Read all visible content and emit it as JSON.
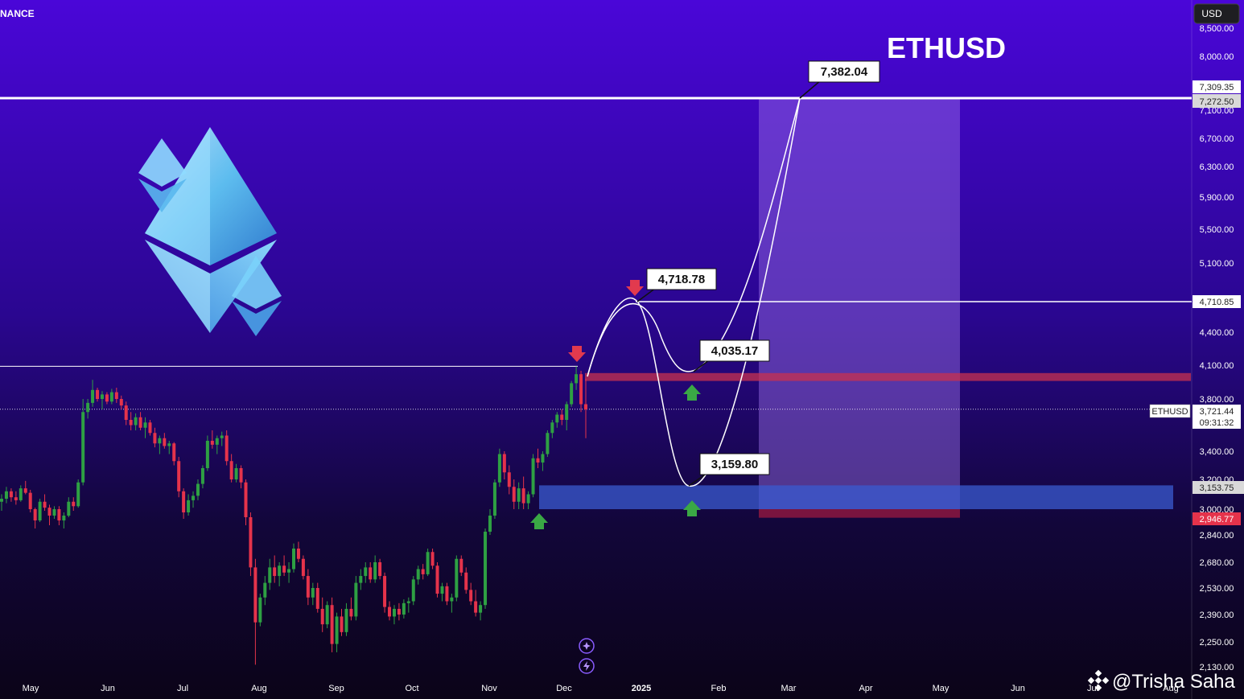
{
  "header": {
    "exchange_fragment": "NANCE",
    "currency_button": "USD",
    "title": "ETHUSD"
  },
  "watermark": "@Trisha Saha",
  "colors": {
    "bg_top": "#4a06d8",
    "bg_bottom": "#0b0418",
    "up_candle": "#2ea043",
    "down_candle": "#e5334b",
    "resistance_zone": "#c8324f",
    "support_zone": "#3a5bd0",
    "projection_box": "#9b72e6",
    "stop_zone": "#8c1740",
    "arrow_up": "#3aa845",
    "arrow_down": "#e23a4e"
  },
  "icons": [
    "compass-icon",
    "lightning-icon"
  ],
  "chart_data": {
    "type": "candlestick",
    "symbol": "ETHUSD",
    "y_ticks": [
      "8,500.00",
      "8,000.00",
      "7,100.00",
      "6,700.00",
      "6,300.00",
      "5,900.00",
      "5,500.00",
      "5,100.00",
      "4,400.00",
      "4,100.00",
      "3,800.00",
      "3,400.00",
      "3,200.00",
      "3,000.00",
      "2,840.00",
      "2,680.00",
      "2,530.00",
      "2,390.00",
      "2,250.00",
      "2,130.00"
    ],
    "x_ticks": [
      "May",
      "Jun",
      "Jul",
      "Aug",
      "Sep",
      "Oct",
      "Nov",
      "Dec",
      "2025",
      "Feb",
      "Mar",
      "Apr",
      "May",
      "Jun",
      "Jul",
      "Aug"
    ],
    "price_flags": {
      "p7309": "7,309.35",
      "p7272": "7,272.50",
      "p4710": "4,710.85",
      "symbol": "ETHUSD",
      "last_price": "3,721.44",
      "countdown": "09:31:32",
      "p3153": "3,153.75",
      "p2946": "2,946.77"
    },
    "callouts": {
      "target": "7,382.04",
      "high": "4,718.78",
      "retest": "4,035.17",
      "low": "3,159.80"
    },
    "levels": {
      "target_line": 7272.5,
      "resistance_line": 4710.85,
      "previous_high_line": 4090,
      "last_price": 3721.44,
      "resistance_zone": [
        3960,
        4030
      ],
      "support_zone": [
        3000,
        3160
      ],
      "stop_zone": [
        2946.77,
        3000
      ],
      "projection_box_top": 7272.5
    },
    "projected_path": [
      {
        "x": "Dec",
        "y": 4030
      },
      {
        "x": "Dec",
        "y": 4718.78
      },
      {
        "x": "Jan",
        "y": 4035.17
      },
      {
        "x": "Jan",
        "y": 3159.8
      },
      {
        "x": "Mar",
        "y": 7382.04
      }
    ],
    "candles_ohlc": [
      [
        3050,
        3100,
        2990,
        3070
      ],
      [
        3070,
        3150,
        3040,
        3120
      ],
      [
        3120,
        3140,
        3050,
        3080
      ],
      [
        3080,
        3120,
        3030,
        3060
      ],
      [
        3060,
        3160,
        3050,
        3140
      ],
      [
        3140,
        3190,
        3100,
        3110
      ],
      [
        3110,
        3130,
        2980,
        3000
      ],
      [
        3000,
        3010,
        2880,
        2930
      ],
      [
        2930,
        3070,
        2920,
        3050
      ],
      [
        3050,
        3100,
        2990,
        3010
      ],
      [
        3010,
        3030,
        2900,
        2960
      ],
      [
        2960,
        3020,
        2940,
        3000
      ],
      [
        3000,
        3020,
        2900,
        2930
      ],
      [
        2930,
        2980,
        2880,
        2960
      ],
      [
        2960,
        3080,
        2950,
        3050
      ],
      [
        3050,
        3080,
        2990,
        3020
      ],
      [
        3020,
        3200,
        3010,
        3180
      ],
      [
        3180,
        3800,
        3160,
        3700
      ],
      [
        3700,
        3800,
        3650,
        3770
      ],
      [
        3770,
        3970,
        3740,
        3880
      ],
      [
        3880,
        3900,
        3780,
        3800
      ],
      [
        3800,
        3870,
        3720,
        3840
      ],
      [
        3840,
        3860,
        3760,
        3780
      ],
      [
        3780,
        3890,
        3760,
        3860
      ],
      [
        3860,
        3900,
        3770,
        3800
      ],
      [
        3800,
        3830,
        3720,
        3750
      ],
      [
        3750,
        3780,
        3600,
        3640
      ],
      [
        3640,
        3700,
        3560,
        3600
      ],
      [
        3600,
        3690,
        3560,
        3660
      ],
      [
        3660,
        3700,
        3560,
        3580
      ],
      [
        3580,
        3660,
        3500,
        3620
      ],
      [
        3620,
        3640,
        3520,
        3540
      ],
      [
        3540,
        3580,
        3430,
        3460
      ],
      [
        3460,
        3520,
        3380,
        3500
      ],
      [
        3500,
        3540,
        3420,
        3440
      ],
      [
        3440,
        3480,
        3380,
        3460
      ],
      [
        3460,
        3470,
        3300,
        3330
      ],
      [
        3330,
        3360,
        3080,
        3120
      ],
      [
        3120,
        3140,
        2940,
        2980
      ],
      [
        2980,
        3100,
        2960,
        3060
      ],
      [
        3060,
        3120,
        3010,
        3090
      ],
      [
        3090,
        3200,
        3060,
        3170
      ],
      [
        3170,
        3300,
        3140,
        3280
      ],
      [
        3280,
        3520,
        3260,
        3480
      ],
      [
        3480,
        3560,
        3420,
        3450
      ],
      [
        3450,
        3520,
        3380,
        3500
      ],
      [
        3500,
        3550,
        3440,
        3520
      ],
      [
        3520,
        3560,
        3300,
        3330
      ],
      [
        3330,
        3380,
        3180,
        3200
      ],
      [
        3200,
        3310,
        3180,
        3280
      ],
      [
        3280,
        3300,
        3140,
        3180
      ],
      [
        3180,
        3200,
        2900,
        2950
      ],
      [
        2950,
        2980,
        2600,
        2650
      ],
      [
        2650,
        2700,
        2140,
        2350
      ],
      [
        2350,
        2500,
        2330,
        2480
      ],
      [
        2480,
        2600,
        2440,
        2560
      ],
      [
        2560,
        2700,
        2520,
        2650
      ],
      [
        2650,
        2720,
        2560,
        2600
      ],
      [
        2600,
        2680,
        2540,
        2660
      ],
      [
        2660,
        2720,
        2600,
        2620
      ],
      [
        2620,
        2680,
        2560,
        2640
      ],
      [
        2640,
        2790,
        2620,
        2760
      ],
      [
        2760,
        2800,
        2680,
        2700
      ],
      [
        2700,
        2720,
        2580,
        2600
      ],
      [
        2600,
        2640,
        2440,
        2480
      ],
      [
        2480,
        2560,
        2440,
        2530
      ],
      [
        2530,
        2560,
        2400,
        2420
      ],
      [
        2420,
        2480,
        2300,
        2340
      ],
      [
        2340,
        2460,
        2320,
        2440
      ],
      [
        2440,
        2480,
        2200,
        2240
      ],
      [
        2240,
        2400,
        2200,
        2380
      ],
      [
        2380,
        2420,
        2280,
        2300
      ],
      [
        2300,
        2450,
        2280,
        2420
      ],
      [
        2420,
        2480,
        2360,
        2380
      ],
      [
        2380,
        2600,
        2360,
        2560
      ],
      [
        2560,
        2640,
        2520,
        2600
      ],
      [
        2600,
        2680,
        2560,
        2650
      ],
      [
        2650,
        2680,
        2560,
        2580
      ],
      [
        2580,
        2720,
        2560,
        2680
      ],
      [
        2680,
        2700,
        2580,
        2600
      ],
      [
        2600,
        2620,
        2400,
        2430
      ],
      [
        2430,
        2460,
        2360,
        2380
      ],
      [
        2380,
        2440,
        2340,
        2420
      ],
      [
        2420,
        2450,
        2360,
        2390
      ],
      [
        2390,
        2470,
        2370,
        2450
      ],
      [
        2450,
        2480,
        2400,
        2460
      ],
      [
        2460,
        2600,
        2440,
        2580
      ],
      [
        2580,
        2660,
        2550,
        2640
      ],
      [
        2640,
        2670,
        2580,
        2610
      ],
      [
        2610,
        2760,
        2600,
        2740
      ],
      [
        2740,
        2760,
        2640,
        2660
      ],
      [
        2660,
        2680,
        2480,
        2500
      ],
      [
        2500,
        2560,
        2460,
        2540
      ],
      [
        2540,
        2560,
        2440,
        2460
      ],
      [
        2460,
        2500,
        2400,
        2480
      ],
      [
        2480,
        2720,
        2460,
        2700
      ],
      [
        2700,
        2720,
        2600,
        2620
      ],
      [
        2620,
        2650,
        2500,
        2520
      ],
      [
        2520,
        2560,
        2440,
        2460
      ],
      [
        2460,
        2520,
        2380,
        2400
      ],
      [
        2400,
        2460,
        2360,
        2440
      ],
      [
        2440,
        2880,
        2420,
        2860
      ],
      [
        2860,
        3000,
        2840,
        2960
      ],
      [
        2960,
        3200,
        2940,
        3180
      ],
      [
        3180,
        3420,
        3150,
        3380
      ],
      [
        3380,
        3400,
        3200,
        3250
      ],
      [
        3250,
        3300,
        3100,
        3150
      ],
      [
        3150,
        3200,
        3000,
        3050
      ],
      [
        3050,
        3180,
        3000,
        3140
      ],
      [
        3140,
        3220,
        3000,
        3040
      ],
      [
        3040,
        3120,
        3000,
        3100
      ],
      [
        3100,
        3380,
        3080,
        3350
      ],
      [
        3350,
        3420,
        3280,
        3320
      ],
      [
        3320,
        3400,
        3260,
        3380
      ],
      [
        3380,
        3560,
        3360,
        3540
      ],
      [
        3540,
        3640,
        3500,
        3620
      ],
      [
        3620,
        3700,
        3580,
        3680
      ],
      [
        3680,
        3720,
        3600,
        3640
      ],
      [
        3640,
        3780,
        3560,
        3760
      ],
      [
        3760,
        3960,
        3740,
        3940
      ],
      [
        3940,
        4090,
        3880,
        4020
      ],
      [
        4020,
        4050,
        3700,
        3760
      ],
      [
        3760,
        3980,
        3500,
        3720
      ]
    ]
  }
}
